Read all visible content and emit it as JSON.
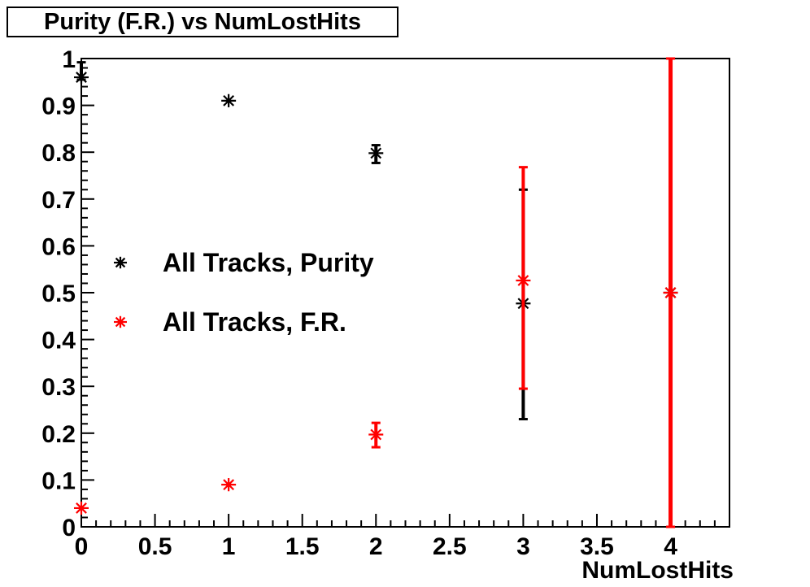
{
  "title": "Purity (F.R.) vs NumLostHits",
  "x_axis": {
    "title": "NumLostHits",
    "min": 0,
    "max": 4.4,
    "major_tick_values": [
      0,
      0.5,
      1,
      1.5,
      2,
      2.5,
      3,
      3.5,
      4
    ],
    "major_tick_labels": [
      "0",
      "0.5",
      "1",
      "1.5",
      "2",
      "2.5",
      "3",
      "3.5",
      "4"
    ],
    "minor_tick_step": 0.1
  },
  "y_axis": {
    "min": 0,
    "max": 1,
    "major_tick_values": [
      0,
      0.1,
      0.2,
      0.3,
      0.4,
      0.5,
      0.6,
      0.7,
      0.8,
      0.9,
      1
    ],
    "major_tick_labels": [
      "0",
      "0.1",
      "0.2",
      "0.3",
      "0.4",
      "0.5",
      "0.6",
      "0.7",
      "0.8",
      "0.9",
      "1"
    ],
    "minor_tick_step": 0.02
  },
  "legend": [
    {
      "label": "All Tracks, Purity",
      "color": "#000000",
      "marker": "asterisk"
    },
    {
      "label": "All Tracks, F.R.",
      "color": "#ff0000",
      "marker": "asterisk"
    }
  ],
  "colors": {
    "purity_series": "#000000",
    "fr_series": "#ff0000",
    "frame": "#000000",
    "background": "#ffffff"
  },
  "chart_data": {
    "type": "scatter",
    "title": "Purity (F.R.) vs NumLostHits",
    "xlabel": "NumLostHits",
    "ylabel": "",
    "xlim": [
      0,
      4.4
    ],
    "ylim": [
      0,
      1
    ],
    "grid": false,
    "legend_position": "inside-left",
    "marker_style": "asterisk",
    "series": [
      {
        "name": "All Tracks, Purity",
        "color": "#000000",
        "points": [
          {
            "x": 0,
            "y": 0.96,
            "err_low": 0.955,
            "err_high": 0.992
          },
          {
            "x": 1,
            "y": 0.91
          },
          {
            "x": 2,
            "y": 0.798,
            "err_low": 0.777,
            "err_high": 0.815
          },
          {
            "x": 3,
            "y": 0.477,
            "err_low": 0.23,
            "err_high": 0.72
          },
          {
            "x": 4,
            "y": 0.5
          }
        ]
      },
      {
        "name": "All Tracks, F.R.",
        "color": "#ff0000",
        "points": [
          {
            "x": 0,
            "y": 0.04
          },
          {
            "x": 1,
            "y": 0.09
          },
          {
            "x": 2,
            "y": 0.197,
            "err_low": 0.17,
            "err_high": 0.222
          },
          {
            "x": 3,
            "y": 0.526,
            "err_low": 0.295,
            "err_high": 0.768
          },
          {
            "x": 4,
            "y": 0.5,
            "err_low": 0.0,
            "err_high": 1.0
          }
        ]
      }
    ]
  }
}
